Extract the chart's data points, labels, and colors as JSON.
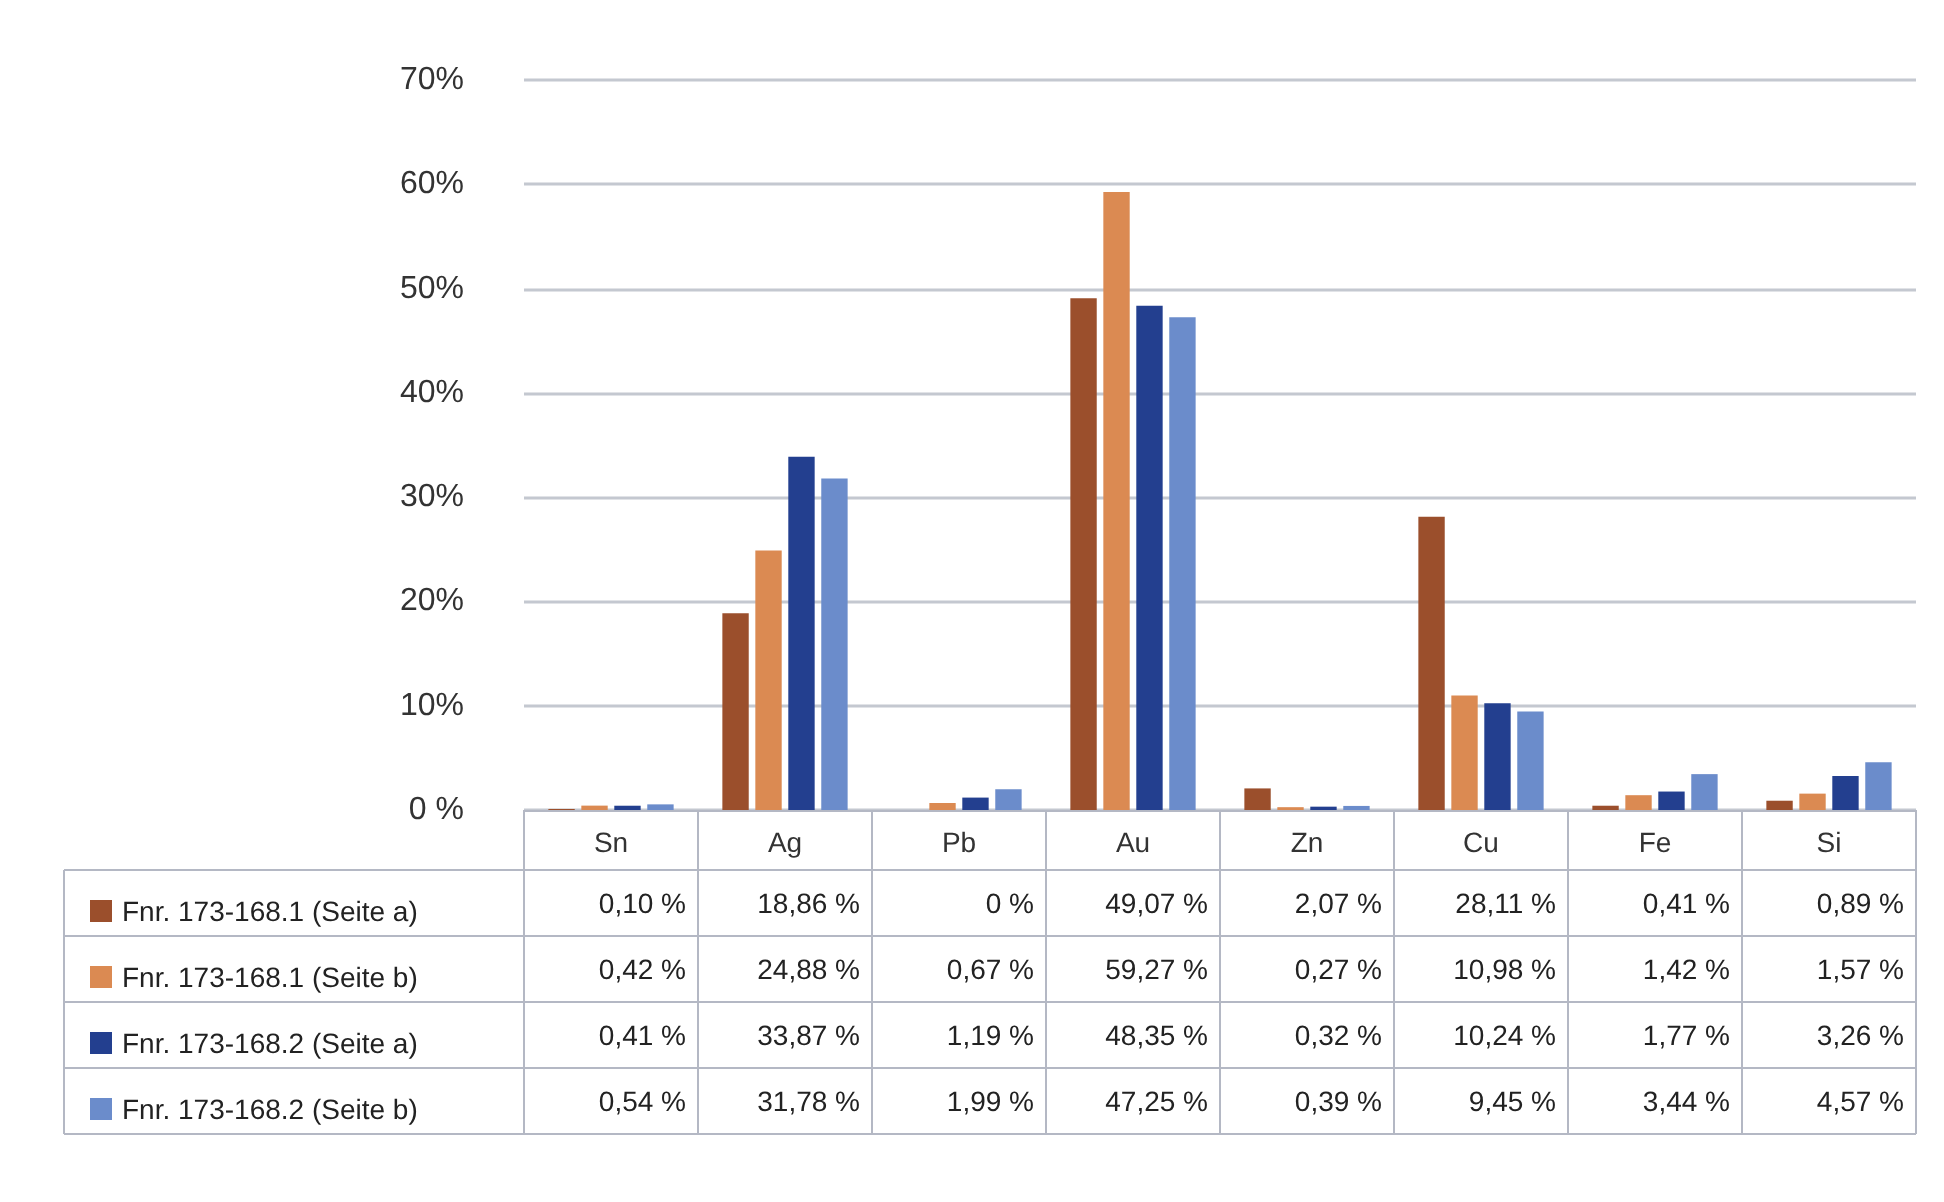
{
  "chart_data": {
    "type": "bar",
    "categories": [
      "Sn",
      "Ag",
      "Pb",
      "Au",
      "Zn",
      "Cu",
      "Fe",
      "Si"
    ],
    "ylim": [
      0,
      70
    ],
    "yticks": [
      {
        "value": 0,
        "label": "0 %"
      },
      {
        "value": 10,
        "label": "10%"
      },
      {
        "value": 20,
        "label": "20%"
      },
      {
        "value": 30,
        "label": "30%"
      },
      {
        "value": 40,
        "label": "40%"
      },
      {
        "value": 50,
        "label": "50%"
      },
      {
        "value": 60,
        "label": "60%"
      },
      {
        "value": 70,
        "label": "70%"
      }
    ],
    "grid": "y",
    "legend": "bottom",
    "series": [
      {
        "name": "Fnr. 173-168.1 (Seite a)",
        "color": "#9b4f2c",
        "values": [
          0.1,
          18.86,
          0,
          49.07,
          2.07,
          28.11,
          0.41,
          0.89
        ],
        "value_labels": [
          "0,10 %",
          "18,86 %",
          "0 %",
          "49,07 %",
          "2,07 %",
          "28,11 %",
          "0,41 %",
          "0,89 %"
        ]
      },
      {
        "name": "Fnr. 173-168.1 (Seite b)",
        "color": "#db8a52",
        "values": [
          0.42,
          24.88,
          0.67,
          59.27,
          0.27,
          10.98,
          1.42,
          1.57
        ],
        "value_labels": [
          "0,42 %",
          "24,88 %",
          "0,67 %",
          "59,27 %",
          "0,27 %",
          "10,98 %",
          "1,42 %",
          "1,57 %"
        ]
      },
      {
        "name": "Fnr. 173-168.2 (Seite a)",
        "color": "#233f8f",
        "values": [
          0.41,
          33.87,
          1.19,
          48.35,
          0.32,
          10.24,
          1.77,
          3.26
        ],
        "value_labels": [
          "0,41 %",
          "33,87 %",
          "1,19 %",
          "48,35 %",
          "0,32 %",
          "10,24 %",
          "1,77 %",
          "3,26 %"
        ]
      },
      {
        "name": "Fnr. 173-168.2 (Seite b)",
        "color": "#6b8ccb",
        "values": [
          0.54,
          31.78,
          1.99,
          47.25,
          0.39,
          9.45,
          3.44,
          4.57
        ],
        "value_labels": [
          "0,54 %",
          "31,78 %",
          "1,99 %",
          "47,25 %",
          "0,39 %",
          "9,45 %",
          "3,44 %",
          "4,57 %"
        ]
      }
    ]
  }
}
